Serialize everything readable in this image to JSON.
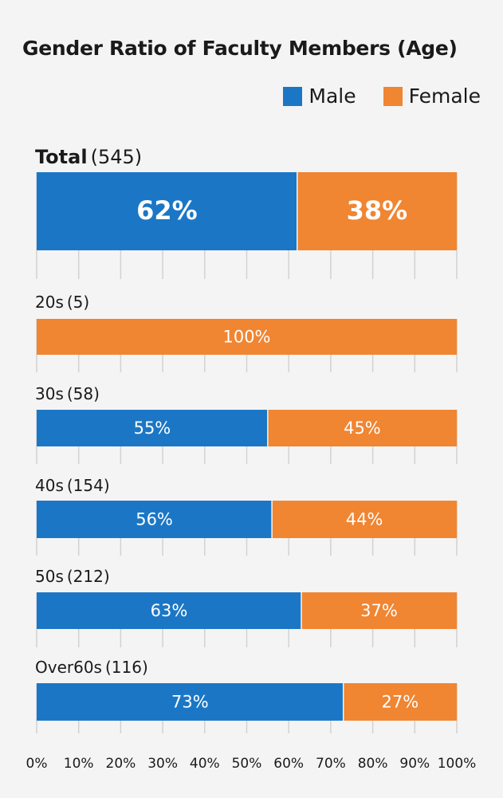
{
  "chart_data": {
    "type": "bar",
    "orientation": "horizontal",
    "stacked": true,
    "percent_stacked": true,
    "title": "Gender Ratio of Faculty Members (Age)",
    "legend": {
      "position": "top-right",
      "entries": [
        "Male",
        "Female"
      ]
    },
    "series": [
      {
        "name": "Male",
        "color": "#1b77c5"
      },
      {
        "name": "Female",
        "color": "#f08532"
      }
    ],
    "categories": [
      {
        "label": "Total",
        "count": "(545)",
        "male": 62,
        "female": 38,
        "male_label": "62%",
        "female_label": "38%",
        "emphasis": true
      },
      {
        "label": "20s",
        "count": "(5)",
        "male": 0,
        "female": 100,
        "male_label": "",
        "female_label": "100%",
        "emphasis": false
      },
      {
        "label": "30s",
        "count": "(58)",
        "male": 55,
        "female": 45,
        "male_label": "55%",
        "female_label": "45%",
        "emphasis": false
      },
      {
        "label": "40s",
        "count": "(154)",
        "male": 56,
        "female": 44,
        "male_label": "56%",
        "female_label": "44%",
        "emphasis": false
      },
      {
        "label": "50s",
        "count": "(212)",
        "male": 63,
        "female": 37,
        "male_label": "63%",
        "female_label": "37%",
        "emphasis": false
      },
      {
        "label": "Over60s",
        "count": "(116)",
        "male": 73,
        "female": 27,
        "male_label": "73%",
        "female_label": "27%",
        "emphasis": false
      }
    ],
    "x_axis": {
      "range": [
        0,
        100
      ],
      "ticks": [
        "0%",
        "10%",
        "20%",
        "30%",
        "40%",
        "50%",
        "60%",
        "70%",
        "80%",
        "90%",
        "100%"
      ]
    },
    "grid": true
  }
}
